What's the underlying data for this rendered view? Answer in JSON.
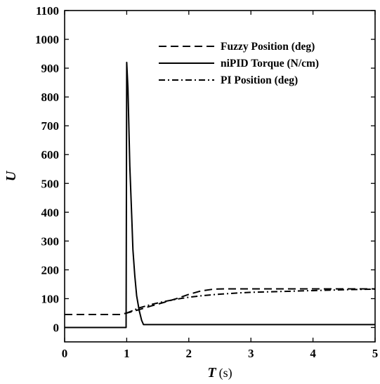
{
  "chart_data": {
    "type": "line",
    "title": "",
    "xlabel": "T",
    "xlabel_unit": "(s)",
    "ylabel": "U",
    "xlim": [
      0,
      5
    ],
    "ylim": [
      -50,
      1100
    ],
    "xticks": [
      0,
      1,
      2,
      3,
      4,
      5
    ],
    "yticks": [
      0,
      100,
      200,
      300,
      400,
      500,
      600,
      700,
      800,
      900,
      1000,
      1100
    ],
    "grid": false,
    "legend_position": "top-right",
    "series": [
      {
        "name": "Fuzzy Position (deg)",
        "line_style": "dashed",
        "color": "#000000",
        "x": [
          0,
          0.9,
          1.0,
          1.2,
          1.4,
          1.6,
          1.8,
          2.0,
          2.2,
          2.4,
          2.6,
          2.8,
          3.0,
          3.5,
          4.0,
          4.5,
          5.0
        ],
        "y": [
          45,
          45,
          50,
          62,
          75,
          87,
          100,
          115,
          127,
          133,
          134,
          134,
          134,
          134,
          134,
          134,
          134
        ]
      },
      {
        "name": "niPID Torque (N/cm)",
        "line_style": "solid",
        "color": "#000000",
        "x": [
          0,
          0.99,
          1.0,
          1.02,
          1.05,
          1.08,
          1.1,
          1.13,
          1.16,
          1.2,
          1.24,
          1.27,
          1.3,
          2.0,
          3.0,
          4.0,
          5.0
        ],
        "y": [
          0,
          0,
          920,
          830,
          560,
          390,
          270,
          180,
          110,
          60,
          25,
          10,
          10,
          10,
          10,
          10,
          10
        ]
      },
      {
        "name": "PI Position (deg)",
        "line_style": "dash-dot",
        "color": "#000000",
        "x": [
          1.0,
          1.2,
          1.4,
          1.6,
          1.8,
          2.0,
          2.2,
          2.4,
          2.6,
          2.8,
          3.0,
          3.5,
          4.0,
          4.5,
          5.0
        ],
        "y": [
          50,
          68,
          80,
          90,
          98,
          105,
          110,
          114,
          117,
          120,
          122,
          125,
          128,
          131,
          133
        ]
      }
    ]
  }
}
